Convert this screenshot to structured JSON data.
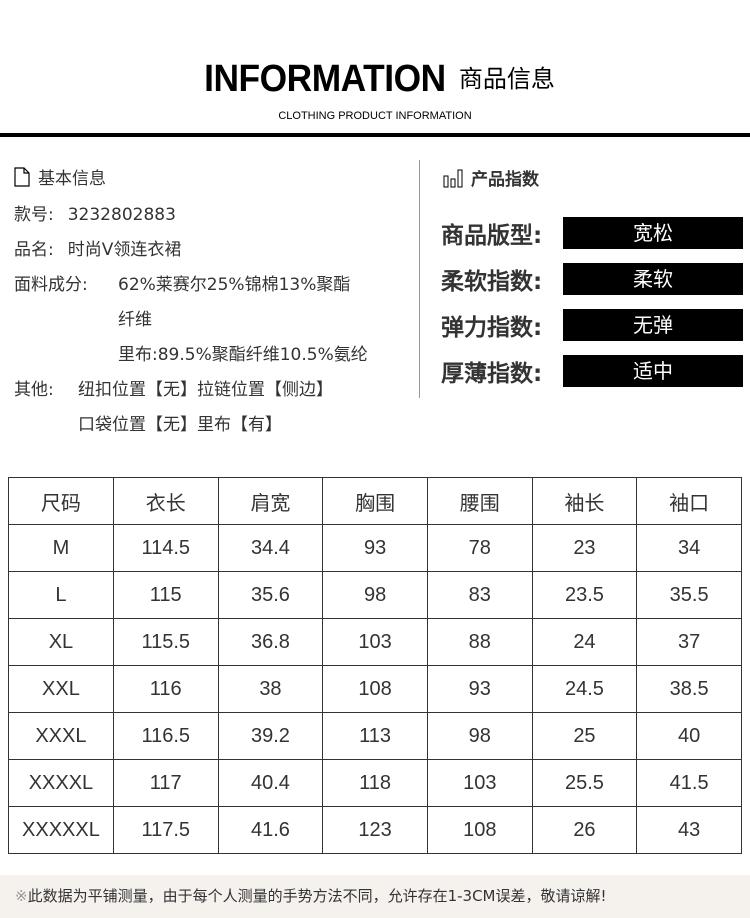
{
  "header": {
    "title_en": "INFORMATION",
    "title_cn": "商品信息",
    "subtitle": "CLOTHING PRODUCT INFORMATION"
  },
  "basic": {
    "heading": "基本信息",
    "icon": "document-icon",
    "style_no_label": "款号:",
    "style_no": "3232802883",
    "name_label": "品名:",
    "name": "时尚V领连衣裙",
    "fabric_label": "面料成分:",
    "fabric_line1": "62%莱赛尔25%锦棉13%聚酯",
    "fabric_line2": "纤维",
    "fabric_line3": "里布:89.5%聚酯纤维10.5%氨纶",
    "other_label": "其他:",
    "other_line1": "纽扣位置【无】拉链位置【侧边】",
    "other_line2": "口袋位置【无】里布【有】"
  },
  "index": {
    "heading": "产品指数",
    "icon": "bar-chart-icon",
    "items": [
      {
        "label": "商品版型:",
        "value": "宽松"
      },
      {
        "label": "柔软指数:",
        "value": "柔软"
      },
      {
        "label": "弹力指数:",
        "value": "无弹"
      },
      {
        "label": "厚薄指数:",
        "value": "适中"
      }
    ]
  },
  "size_table": {
    "headers": [
      "尺码",
      "衣长",
      "肩宽",
      "胸围",
      "腰围",
      "袖长",
      "袖口"
    ],
    "rows": [
      [
        "M",
        "114.5",
        "34.4",
        "93",
        "78",
        "23",
        "34"
      ],
      [
        "L",
        "115",
        "35.6",
        "98",
        "83",
        "23.5",
        "35.5"
      ],
      [
        "XL",
        "115.5",
        "36.8",
        "103",
        "88",
        "24",
        "37"
      ],
      [
        "XXL",
        "116",
        "38",
        "108",
        "93",
        "24.5",
        "38.5"
      ],
      [
        "XXXL",
        "116.5",
        "39.2",
        "113",
        "98",
        "25",
        "40"
      ],
      [
        "XXXXL",
        "117",
        "40.4",
        "118",
        "103",
        "25.5",
        "41.5"
      ],
      [
        "XXXXXL",
        "117.5",
        "41.6",
        "123",
        "108",
        "26",
        "43"
      ]
    ]
  },
  "note": {
    "symbol": "※",
    "text": "此数据为平铺测量，由于每个人测量的手势方法不同，允许存在1-3CM误差，敬请谅解!"
  }
}
